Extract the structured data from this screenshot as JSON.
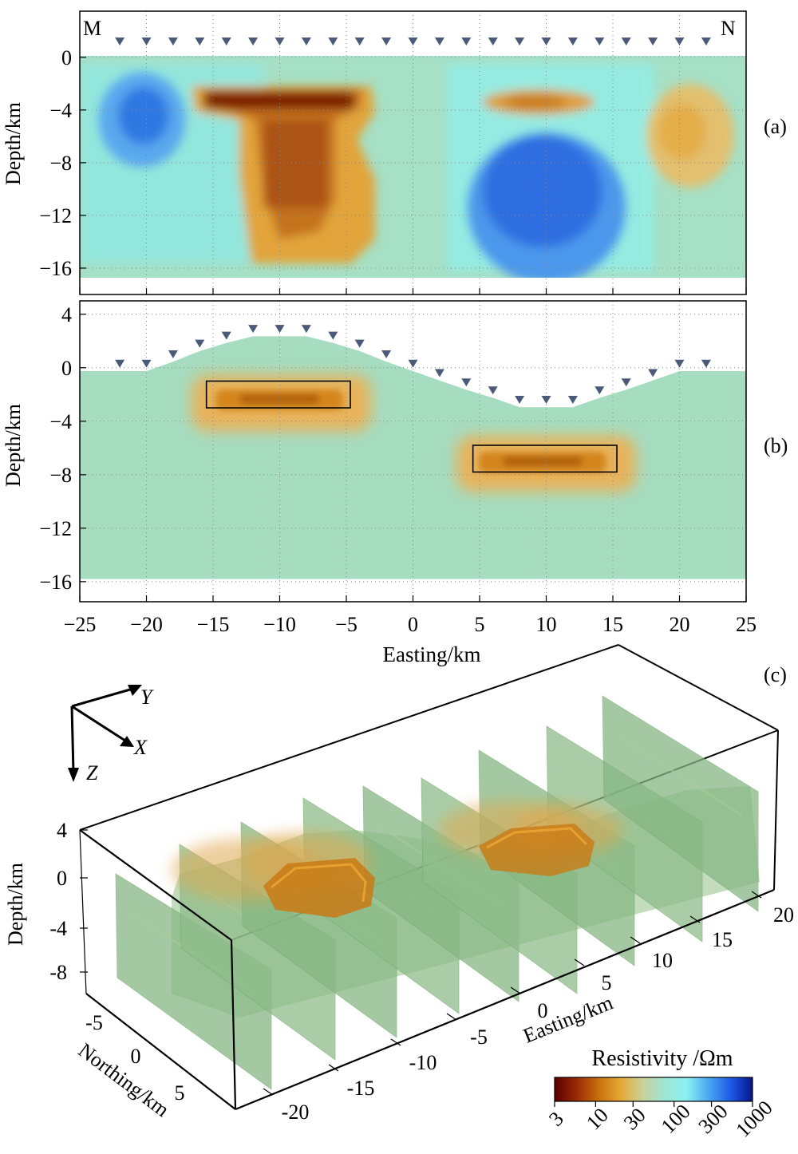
{
  "panel_a": {
    "tag": "(a)",
    "left_label": "M",
    "right_label": "N",
    "ylabel": "Depth/km",
    "yticks": [
      "0",
      "−4",
      "−8",
      "−12",
      "−16"
    ],
    "ytick_values": [
      0,
      -4,
      -8,
      -12,
      -16
    ],
    "xlim": [
      -25,
      25
    ],
    "ylim": [
      -18,
      3.5
    ],
    "stations_x": [
      -22,
      -20,
      -18,
      -16,
      -14,
      -12,
      -10,
      -8,
      -6,
      -4,
      -2,
      0,
      2,
      4,
      6,
      8,
      10,
      12,
      14,
      16,
      18,
      20,
      22
    ]
  },
  "panel_b": {
    "tag": "(b)",
    "ylabel": "Depth/km",
    "yticks": [
      "4",
      "0",
      "−4",
      "−8",
      "−12",
      "−16"
    ],
    "ytick_values": [
      4,
      0,
      -4,
      -8,
      -12,
      -16
    ],
    "xlabel": "Easting/km",
    "xticks": [
      "−25",
      "−20",
      "−15",
      "−10",
      "−5",
      "0",
      "5",
      "10",
      "15",
      "20",
      "25"
    ],
    "xtick_values": [
      -25,
      -20,
      -15,
      -10,
      -5,
      0,
      5,
      10,
      15,
      20,
      25
    ],
    "xlim": [
      -25,
      25
    ],
    "ylim": [
      -17.5,
      5
    ],
    "stations": [
      [
        -22,
        0.3
      ],
      [
        -20,
        0.3
      ],
      [
        -18,
        1.0
      ],
      [
        -16,
        1.8
      ],
      [
        -14,
        2.4
      ],
      [
        -12,
        2.9
      ],
      [
        -10,
        2.9
      ],
      [
        -8,
        2.9
      ],
      [
        -6,
        2.4
      ],
      [
        -4,
        1.8
      ],
      [
        -2,
        1.0
      ],
      [
        0,
        0.3
      ],
      [
        2,
        -0.4
      ],
      [
        4,
        -1.1
      ],
      [
        6,
        -1.7
      ],
      [
        8,
        -2.4
      ],
      [
        10,
        -2.4
      ],
      [
        12,
        -2.4
      ],
      [
        14,
        -1.7
      ],
      [
        16,
        -1.1
      ],
      [
        18,
        -0.4
      ],
      [
        20,
        0.3
      ],
      [
        22,
        0.3
      ]
    ],
    "blocks": [
      {
        "x": [
          -15.5,
          -4.7
        ],
        "depth": [
          -1,
          -3
        ]
      },
      {
        "x": [
          4.5,
          15.3
        ],
        "depth": [
          -5.8,
          -7.8
        ]
      }
    ]
  },
  "panel_c": {
    "tag": "(c)",
    "axis_labels": {
      "x": "X",
      "y": "Y",
      "z": "Z"
    },
    "depth_label": "Depth/km",
    "depth_ticks": [
      "4",
      "0",
      "-4",
      "-8"
    ],
    "easting_label": "Easting/km",
    "easting_ticks": [
      "-20",
      "-15",
      "-10",
      "-5",
      "0",
      "5",
      "10",
      "15",
      "20"
    ],
    "northing_label": "Northing/km",
    "northing_ticks": [
      "-5",
      "0",
      "5"
    ]
  },
  "colorbar": {
    "title": "Resistivity /Ωm",
    "ticks": [
      "3",
      "10",
      "30",
      "100",
      "300",
      "1000"
    ],
    "tick_values": [
      3,
      10,
      30,
      100,
      300,
      1000
    ],
    "colors": [
      "#5a0000",
      "#9a2a05",
      "#c8700a",
      "#e6a835",
      "#c8d29a",
      "#9ee6d4",
      "#8cf0f0",
      "#4aa8f0",
      "#1e5ae6",
      "#08148c"
    ]
  },
  "chart_data": [
    {
      "type": "heatmap",
      "panel": "(a)",
      "ylabel": "Depth/km",
      "xlim": [
        -25,
        25
      ],
      "ylim": [
        -18,
        3.5
      ],
      "background_resistivity_ohm_m": 80,
      "anomalies": [
        {
          "kind": "conductor",
          "x_center": -10,
          "depth_center": -3.5,
          "resistivity_ohm_m": 4
        },
        {
          "kind": "conductor",
          "x_center": -9,
          "depth_center": -11,
          "resistivity_ohm_m": 15
        },
        {
          "kind": "conductor",
          "x_center": 9.5,
          "depth_center": -3.5,
          "resistivity_ohm_m": 25
        },
        {
          "kind": "resistor",
          "x_center": 10,
          "depth_center": -10.5,
          "resistivity_ohm_m": 400
        },
        {
          "kind": "resistor",
          "x_center": -20,
          "depth_center": -4.5,
          "resistivity_ohm_m": 300
        },
        {
          "kind": "conductor",
          "x_center": 19.5,
          "depth_center": -5.5,
          "resistivity_ohm_m": 35
        }
      ]
    },
    {
      "type": "heatmap",
      "panel": "(b)",
      "xlabel": "Easting/km",
      "ylabel": "Depth/km",
      "xlim": [
        -25,
        25
      ],
      "ylim": [
        -17.5,
        5
      ],
      "background_resistivity_ohm_m": 60,
      "anomalies": [
        {
          "kind": "conductor",
          "x": [
            -15.5,
            -4.7
          ],
          "depth": [
            -1,
            -3
          ],
          "resistivity_ohm_m": 10
        },
        {
          "kind": "conductor",
          "x": [
            4.5,
            15.3
          ],
          "depth": [
            -5.8,
            -7.8
          ],
          "resistivity_ohm_m": 10
        }
      ]
    }
  ]
}
